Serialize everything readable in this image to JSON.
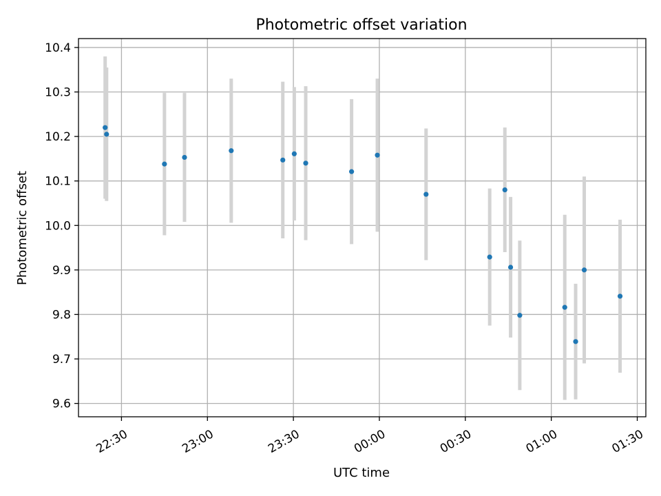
{
  "chart_data": {
    "type": "scatter",
    "title": "Photometric offset variation",
    "xlabel": "UTC time",
    "ylabel": "Photometric offset",
    "grid": true,
    "x_unit": "UTC time (HH:MM)",
    "xlim": [
      "22:15",
      "01:33"
    ],
    "ylim": [
      9.57,
      10.42
    ],
    "x_ticks": [
      "22:30",
      "23:00",
      "23:30",
      "00:00",
      "00:30",
      "01:00",
      "01:30"
    ],
    "y_ticks": [
      "9.6",
      "9.7",
      "9.8",
      "9.9",
      "10.0",
      "10.1",
      "10.2",
      "10.3",
      "10.4"
    ],
    "colors": {
      "point": "#1f77b4",
      "errorbar": "#d3d3d3",
      "grid": "#b0b0b0"
    },
    "series": [
      {
        "points": [
          {
            "x": "22:24.3",
            "y": 10.22,
            "err": 0.16
          },
          {
            "x": "22:24.8",
            "y": 10.205,
            "err": 0.15
          },
          {
            "x": "22:45.0",
            "y": 10.138,
            "err": 0.16
          },
          {
            "x": "22:52.0",
            "y": 10.153,
            "err": 0.145
          },
          {
            "x": "23:08.3",
            "y": 10.168,
            "err": 0.162
          },
          {
            "x": "23:26.3",
            "y": 10.147,
            "err": 0.176
          },
          {
            "x": "23:30.3",
            "y": 10.161,
            "err": 0.15
          },
          {
            "x": "23:34.3",
            "y": 10.14,
            "err": 0.173
          },
          {
            "x": "23:50.3",
            "y": 10.121,
            "err": 0.163
          },
          {
            "x": "23:59.3",
            "y": 10.158,
            "err": 0.172
          },
          {
            "x": "00:16.3",
            "y": 10.07,
            "err": 0.148
          },
          {
            "x": "00:38.5",
            "y": 9.929,
            "err": 0.154
          },
          {
            "x": "00:43.8",
            "y": 10.08,
            "err": 0.14
          },
          {
            "x": "00:45.8",
            "y": 9.906,
            "err": 0.158
          },
          {
            "x": "00:49.0",
            "y": 9.798,
            "err": 0.168
          },
          {
            "x": "01:04.7",
            "y": 9.816,
            "err": 0.208
          },
          {
            "x": "01:08.5",
            "y": 9.739,
            "err": 0.13
          },
          {
            "x": "01:11.5",
            "y": 9.9,
            "err": 0.21
          },
          {
            "x": "01:24.0",
            "y": 9.841,
            "err": 0.172
          }
        ]
      }
    ]
  }
}
